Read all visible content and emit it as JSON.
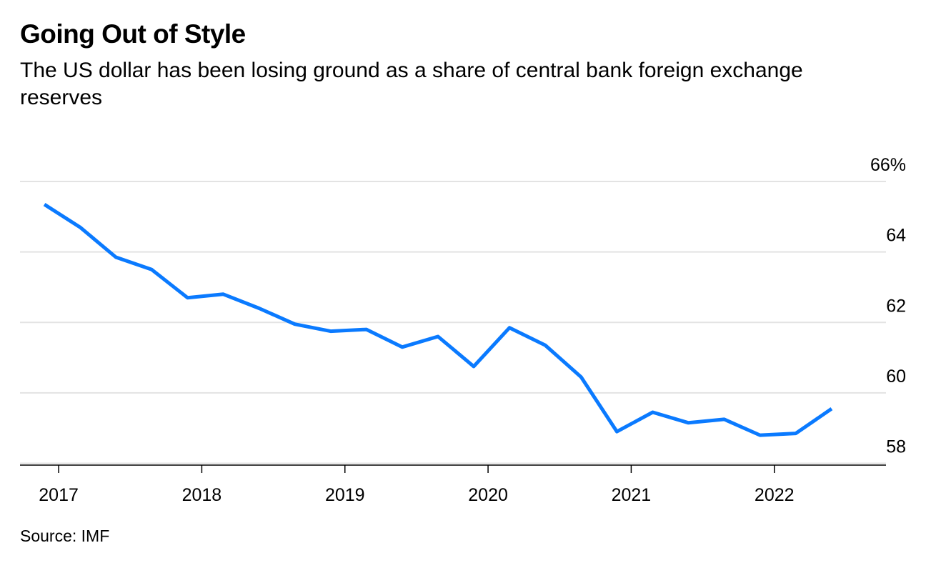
{
  "chart_data": {
    "type": "line",
    "title": "Going Out of Style",
    "subtitle": "The US dollar has been losing ground as a share of central bank foreign exchange reserves",
    "source": "Source: IMF",
    "xlabel": "",
    "ylabel": "",
    "x_ticks": [
      {
        "label": "2017",
        "value": 2017
      },
      {
        "label": "2018",
        "value": 2018
      },
      {
        "label": "2019",
        "value": 2019
      },
      {
        "label": "2020",
        "value": 2020
      },
      {
        "label": "2021",
        "value": 2021
      },
      {
        "label": "2022",
        "value": 2022
      }
    ],
    "y_ticks": [
      {
        "label": "66%",
        "value": 66
      },
      {
        "label": "64",
        "value": 64
      },
      {
        "label": "62",
        "value": 62
      },
      {
        "label": "60",
        "value": 60
      },
      {
        "label": "58",
        "value": 58
      }
    ],
    "xlim": [
      2016.73,
      2022.78
    ],
    "ylim": [
      57.95,
      66
    ],
    "grid": true,
    "legend": "none",
    "series": [
      {
        "name": "US dollar share of central bank FX reserves",
        "color": "#0A7AFF",
        "x": [
          2016.9,
          2017.15,
          2017.4,
          2017.65,
          2017.9,
          2018.15,
          2018.4,
          2018.65,
          2018.9,
          2019.15,
          2019.4,
          2019.65,
          2019.9,
          2020.15,
          2020.4,
          2020.65,
          2020.9,
          2021.15,
          2021.4,
          2021.65,
          2021.9,
          2022.15,
          2022.4
        ],
        "values": [
          65.35,
          64.7,
          63.85,
          63.5,
          62.7,
          62.8,
          62.4,
          61.95,
          61.75,
          61.8,
          61.3,
          61.6,
          60.75,
          61.85,
          61.35,
          60.45,
          58.9,
          59.45,
          59.15,
          59.25,
          58.8,
          58.85,
          59.55
        ]
      }
    ]
  }
}
